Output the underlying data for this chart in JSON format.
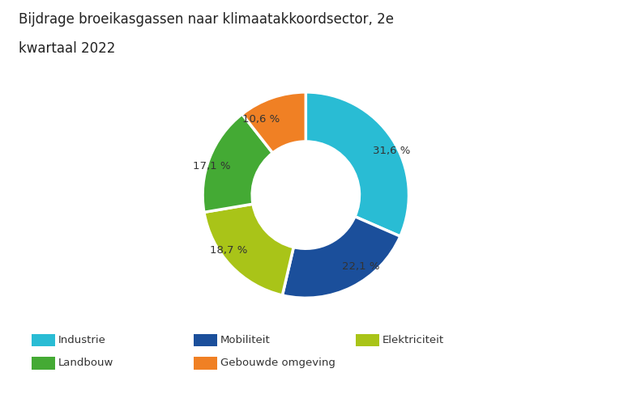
{
  "title_line1": "Bijdrage broeikasgassen naar klimaatakkoordsector, 2e",
  "title_line2": "kwartaal 2022",
  "title_fontsize": 12,
  "sectors": [
    "Industrie",
    "Mobiliteit",
    "Elektriciteit",
    "Landbouw",
    "Gebouwde omgeving"
  ],
  "values": [
    31.6,
    22.1,
    18.7,
    17.1,
    10.6
  ],
  "colors": [
    "#29BCD4",
    "#1B4F9B",
    "#A9C418",
    "#44AA34",
    "#F08024"
  ],
  "labels": [
    "31,6 %",
    "22,1 %",
    "18,7 %",
    "17,1 %",
    "10,6 %"
  ],
  "background_color": "#ffffff",
  "start_angle": 90,
  "legend_items": [
    {
      "label": "Industrie",
      "color": "#29BCD4"
    },
    {
      "label": "Mobiliteit",
      "color": "#1B4F9B"
    },
    {
      "label": "Elektriciteit",
      "color": "#A9C418"
    },
    {
      "label": "Landbouw",
      "color": "#44AA34"
    },
    {
      "label": "Gebouwde omgeving",
      "color": "#F08024"
    }
  ],
  "label_fontsize": 9.5,
  "legend_fontsize": 9.5
}
